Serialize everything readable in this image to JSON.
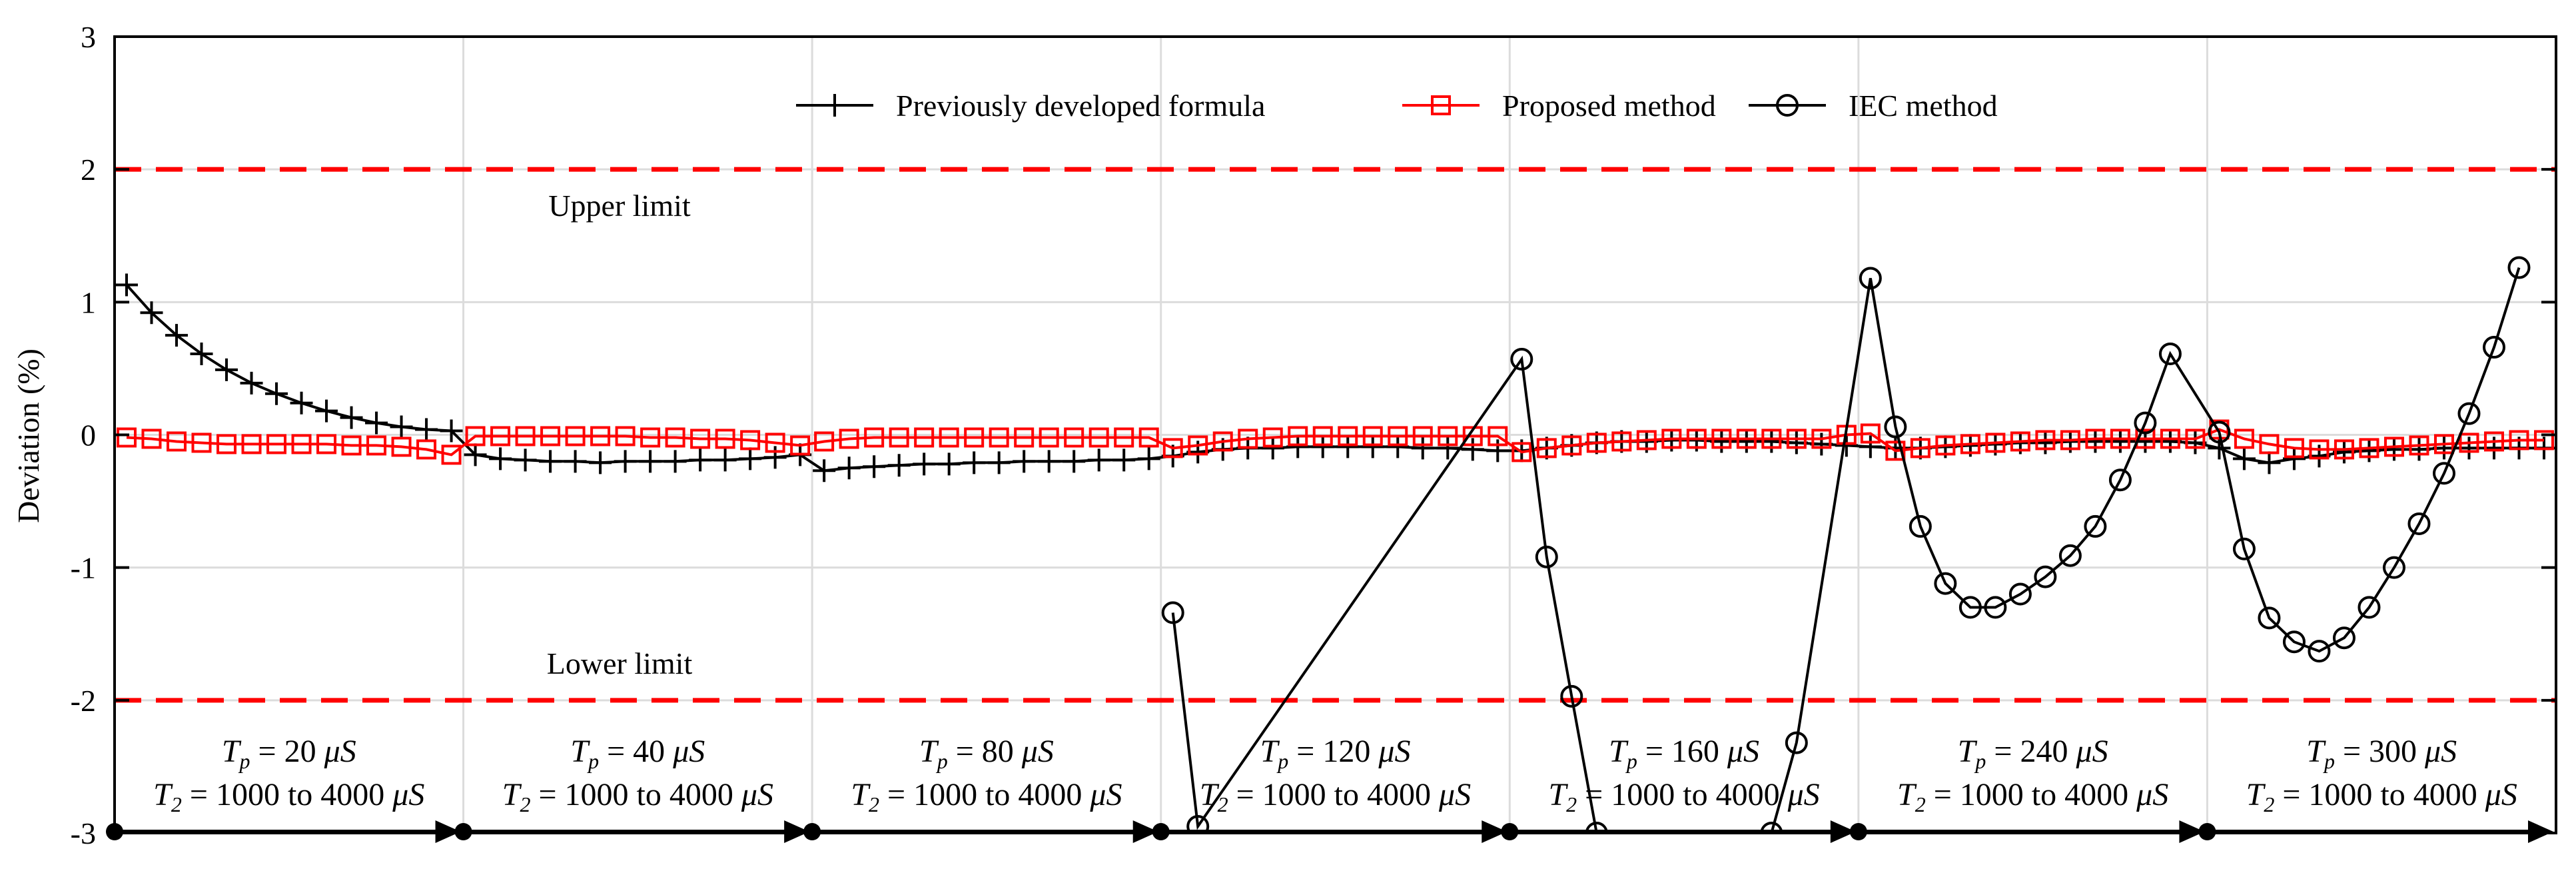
{
  "chart_data": {
    "type": "line",
    "ylabel": "Deviation (%)",
    "ylim": [
      -3,
      3
    ],
    "yticks": [
      -3,
      -2,
      -1,
      0,
      1,
      2,
      3
    ],
    "x_segments": 7,
    "grid": true,
    "limits": [
      {
        "name": "upper",
        "value": 2,
        "label": "Upper limit",
        "color": "#ff0000"
      },
      {
        "name": "lower",
        "value": -2,
        "label": "Lower limit",
        "color": "#ff0000"
      }
    ],
    "segments": [
      {
        "tp_value": "20",
        "t2_range": "1000 to 4000"
      },
      {
        "tp_value": "40",
        "t2_range": "1000 to 4000"
      },
      {
        "tp_value": "80",
        "t2_range": "1000 to 4000"
      },
      {
        "tp_value": "120",
        "t2_range": "1000 to 4000"
      },
      {
        "tp_value": "160",
        "t2_range": "1000 to 4000"
      },
      {
        "tp_value": "240",
        "t2_range": "1000 to 4000"
      },
      {
        "tp_value": "300",
        "t2_range": "1000 to 4000"
      }
    ],
    "units": {
      "time": "μS"
    },
    "series": [
      {
        "name": "Previously developed formula",
        "marker": "plus",
        "color": "#000000",
        "segments": [
          [
            1.13,
            0.92,
            0.75,
            0.61,
            0.49,
            0.39,
            0.31,
            0.24,
            0.18,
            0.13,
            0.09,
            0.06,
            0.04,
            0.03
          ],
          [
            -0.15,
            -0.18,
            -0.19,
            -0.2,
            -0.2,
            -0.21,
            -0.2,
            -0.2,
            -0.2,
            -0.19,
            -0.19,
            -0.18,
            -0.17,
            -0.15
          ],
          [
            -0.27,
            -0.25,
            -0.24,
            -0.23,
            -0.22,
            -0.22,
            -0.21,
            -0.21,
            -0.2,
            -0.2,
            -0.2,
            -0.19,
            -0.19,
            -0.18
          ],
          [
            -0.16,
            -0.13,
            -0.11,
            -0.1,
            -0.1,
            -0.09,
            -0.09,
            -0.09,
            -0.09,
            -0.09,
            -0.1,
            -0.1,
            -0.11,
            -0.12
          ],
          [
            -0.12,
            -0.1,
            -0.08,
            -0.06,
            -0.05,
            -0.05,
            -0.04,
            -0.04,
            -0.05,
            -0.05,
            -0.05,
            -0.06,
            -0.07,
            -0.08
          ],
          [
            -0.09,
            -0.1,
            -0.1,
            -0.09,
            -0.08,
            -0.07,
            -0.06,
            -0.06,
            -0.05,
            -0.05,
            -0.05,
            -0.05,
            -0.05,
            -0.06
          ],
          [
            -0.1,
            -0.18,
            -0.21,
            -0.18,
            -0.16,
            -0.13,
            -0.12,
            -0.11,
            -0.11,
            -0.1,
            -0.1,
            -0.1,
            -0.1,
            -0.1
          ]
        ]
      },
      {
        "name": "Proposed method",
        "marker": "square",
        "color": "#ff0000",
        "segments": [
          [
            -0.02,
            -0.03,
            -0.05,
            -0.06,
            -0.07,
            -0.07,
            -0.07,
            -0.07,
            -0.07,
            -0.08,
            -0.08,
            -0.09,
            -0.11,
            -0.15
          ],
          [
            -0.01,
            -0.01,
            -0.01,
            -0.01,
            -0.01,
            -0.01,
            -0.01,
            -0.02,
            -0.02,
            -0.03,
            -0.03,
            -0.04,
            -0.06,
            -0.08
          ],
          [
            -0.05,
            -0.03,
            -0.02,
            -0.02,
            -0.02,
            -0.02,
            -0.02,
            -0.02,
            -0.02,
            -0.02,
            -0.02,
            -0.02,
            -0.02,
            -0.02
          ],
          [
            -0.1,
            -0.08,
            -0.05,
            -0.03,
            -0.02,
            -0.01,
            -0.01,
            -0.01,
            -0.01,
            -0.01,
            -0.01,
            -0.01,
            -0.01,
            -0.01
          ],
          [
            -0.13,
            -0.1,
            -0.08,
            -0.06,
            -0.05,
            -0.04,
            -0.03,
            -0.03,
            -0.03,
            -0.03,
            -0.03,
            -0.03,
            -0.03,
            0.0
          ],
          [
            0.01,
            -0.12,
            -0.1,
            -0.08,
            -0.07,
            -0.06,
            -0.05,
            -0.04,
            -0.04,
            -0.03,
            -0.03,
            -0.03,
            -0.03,
            -0.03
          ],
          [
            0.04,
            -0.03,
            -0.07,
            -0.1,
            -0.11,
            -0.11,
            -0.1,
            -0.09,
            -0.08,
            -0.07,
            -0.06,
            -0.05,
            -0.04,
            -0.04
          ]
        ]
      },
      {
        "name": "IEC method",
        "marker": "circle",
        "color": "#000000",
        "segments": [
          [],
          [],
          [],
          [
            -1.34,
            -2.95
          ],
          [
            0.57,
            -0.92,
            -1.97,
            -3.0,
            null,
            null,
            null,
            null,
            null,
            null,
            -3.0,
            -2.32
          ],
          [
            1.18,
            0.06,
            -0.69,
            -1.12,
            -1.3,
            -1.3,
            -1.2,
            -1.07,
            -0.91,
            -0.69,
            -0.34,
            0.09,
            0.61
          ],
          [
            0.02,
            -0.86,
            -1.38,
            -1.56,
            -1.63,
            -1.53,
            -1.3,
            -1.0,
            -0.67,
            -0.29,
            0.16,
            0.66,
            1.26
          ]
        ]
      }
    ]
  }
}
